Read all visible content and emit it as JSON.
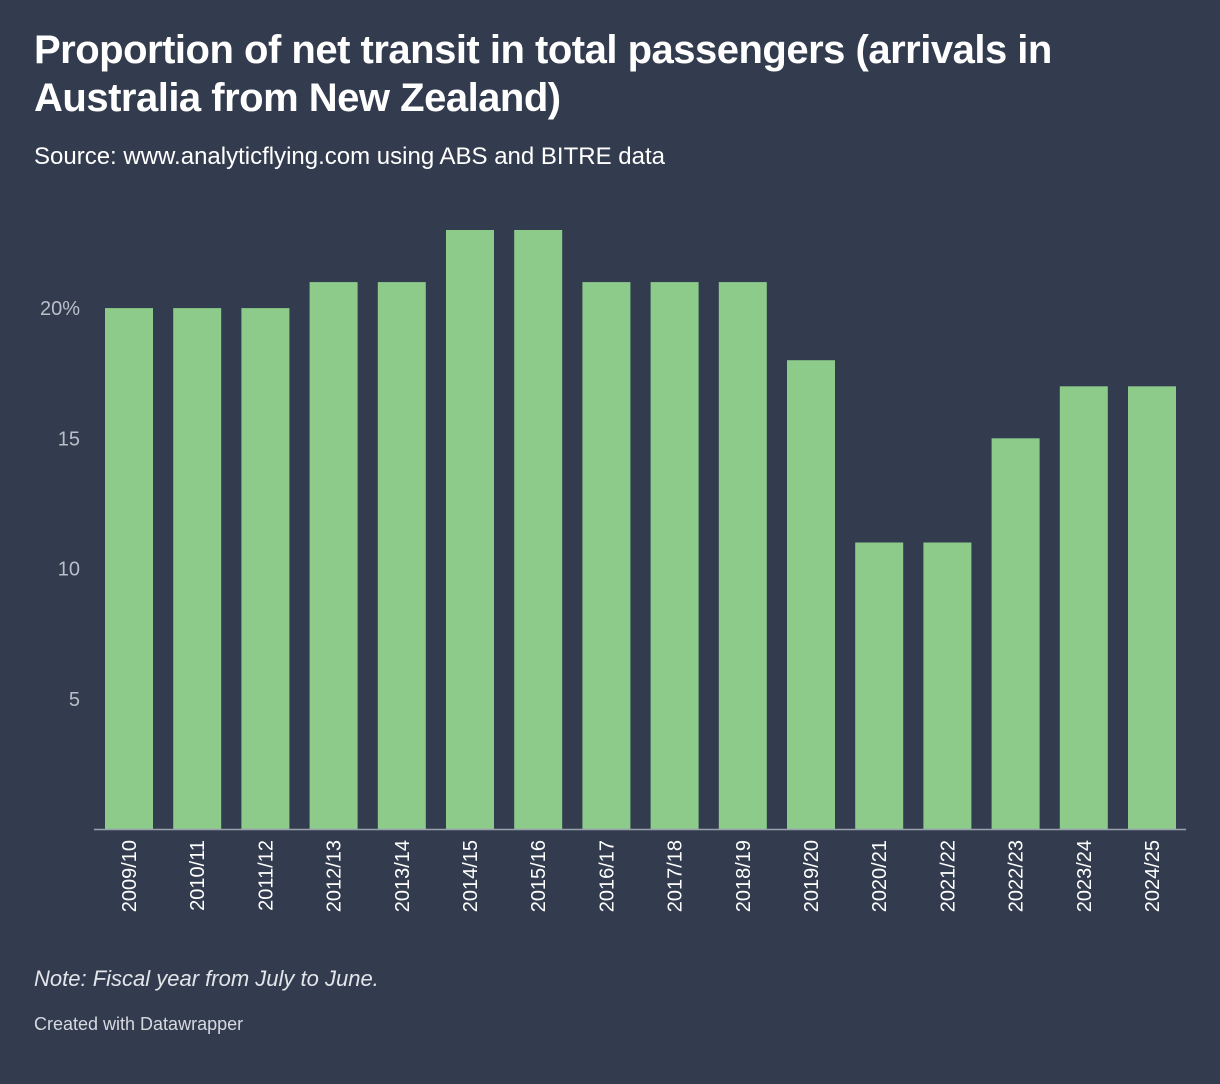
{
  "header": {
    "title": "Proportion of net transit in total passengers (arrivals in Australia from New Zealand)",
    "subtitle": "Source: www.analyticflying.com using ABS and BITRE data"
  },
  "footer": {
    "note": "Note: Fiscal year from July to June.",
    "credit": "Created with Datawrapper"
  },
  "colors": {
    "background": "#333c4e",
    "bar": "#8ccb8a",
    "axis": "#9aa1ad",
    "tick_text": "#b9bec8",
    "category_text": "#ffffff"
  },
  "chart_data": {
    "type": "bar",
    "title": "Proportion of net transit in total passengers (arrivals in Australia from New Zealand)",
    "xlabel": "",
    "ylabel": "",
    "ylim": [
      0,
      23
    ],
    "yticks": [
      {
        "value": 5,
        "label": "5"
      },
      {
        "value": 10,
        "label": "10"
      },
      {
        "value": 15,
        "label": "15"
      },
      {
        "value": 20,
        "label": "20%"
      }
    ],
    "grid": false,
    "categories": [
      "2009/10",
      "2010/11",
      "2011/12",
      "2012/13",
      "2013/14",
      "2014/15",
      "2015/16",
      "2016/17",
      "2017/18",
      "2018/19",
      "2019/20",
      "2020/21",
      "2021/22",
      "2022/23",
      "2023/24",
      "2024/25"
    ],
    "values": [
      20,
      20,
      20,
      21,
      21,
      23,
      23,
      21,
      21,
      21,
      18,
      11,
      11,
      15,
      17,
      17
    ]
  }
}
